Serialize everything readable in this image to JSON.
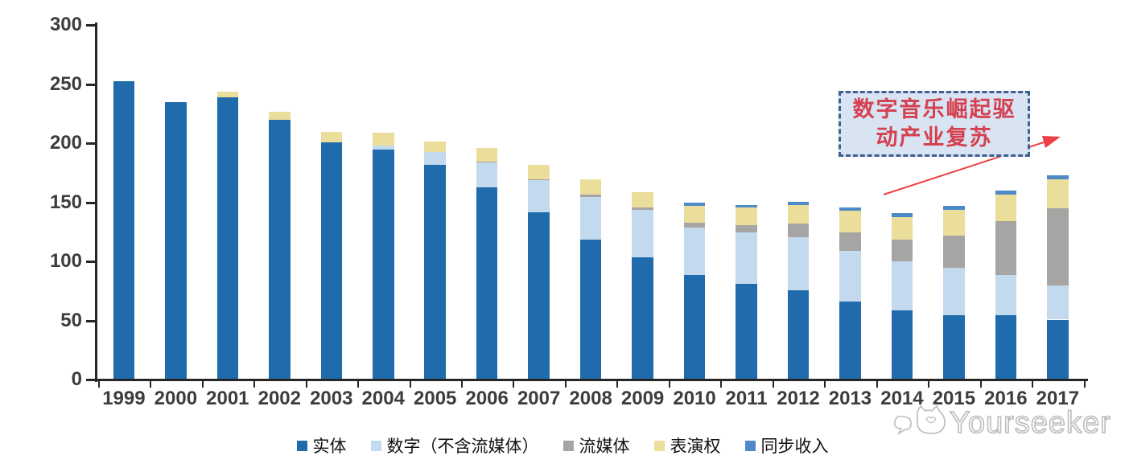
{
  "chart_data": {
    "type": "bar",
    "stacked": true,
    "title": "",
    "xlabel": "",
    "ylabel": "",
    "ylim": [
      0,
      300
    ],
    "yticks": [
      0,
      50,
      100,
      150,
      200,
      250,
      300
    ],
    "grid": false,
    "legend_position": "bottom",
    "categories": [
      "1999",
      "2000",
      "2001",
      "2002",
      "2003",
      "2004",
      "2005",
      "2006",
      "2007",
      "2008",
      "2009",
      "2010",
      "2011",
      "2012",
      "2013",
      "2014",
      "2015",
      "2016",
      "2017"
    ],
    "series": [
      {
        "name": "实体",
        "color": "#1f6bac",
        "values": [
          252,
          234,
          238,
          219,
          200,
          194,
          181,
          162,
          141,
          118,
          103,
          88,
          80,
          75,
          65,
          58,
          54,
          54,
          50
        ]
      },
      {
        "name": "数字（不含流媒体）",
        "color": "#c3d9ee",
        "values": [
          0,
          0,
          0,
          0,
          0,
          3,
          11,
          21,
          27,
          36,
          40,
          40,
          44,
          45,
          43,
          41,
          40,
          34,
          29
        ]
      },
      {
        "name": "流媒体",
        "color": "#a6a5a3",
        "values": [
          0,
          0,
          0,
          0,
          0,
          0,
          0,
          1,
          1,
          2,
          2,
          4,
          6,
          11,
          16,
          19,
          27,
          45,
          65
        ]
      },
      {
        "name": "表演权",
        "color": "#ebde9b",
        "values": [
          0,
          0,
          5,
          7,
          9,
          11,
          9,
          11,
          12,
          13,
          13,
          14,
          15,
          16,
          18,
          19,
          22,
          23,
          25
        ]
      },
      {
        "name": "同步收入",
        "color": "#4e89c8",
        "values": [
          0,
          0,
          0,
          0,
          0,
          0,
          0,
          0,
          0,
          0,
          0,
          3,
          2,
          3,
          3,
          3,
          3,
          3,
          3
        ]
      }
    ]
  },
  "annotation": {
    "text": "数字音乐崛起驱动产业复苏",
    "lines": [
      "数字音乐崛起驱",
      "动产业复苏"
    ],
    "box_fill": "#d9e4f3",
    "border_color": "#3f5e92",
    "text_color": "#d4404f",
    "arrow_color": "#ec4046"
  },
  "watermark": {
    "text": "Yourseeker",
    "color": "#bcbcbc"
  },
  "axis": {
    "line_color": "#262626",
    "label_color": "#3d3d3d"
  }
}
